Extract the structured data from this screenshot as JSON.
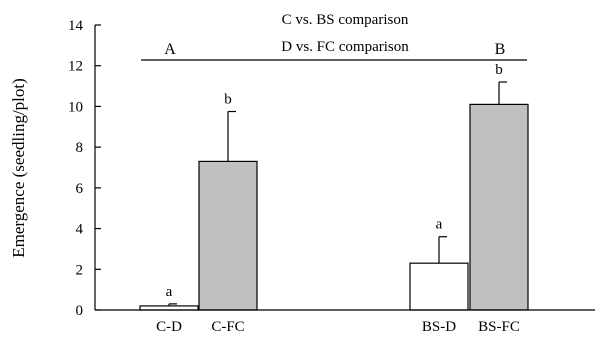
{
  "chart_data": {
    "type": "bar",
    "categories": [
      "C-D",
      "C-FC",
      "BS-D",
      "BS-FC"
    ],
    "values": [
      0.2,
      7.3,
      2.3,
      10.1
    ],
    "errors": [
      0.1,
      2.45,
      1.3,
      1.1
    ],
    "bar_colors": [
      "#ffffff",
      "#c0c0c0",
      "#ffffff",
      "#c0c0c0"
    ],
    "significance_letters": [
      "a",
      "b",
      "a",
      "b"
    ],
    "ylabel": "Emergence (seedling/plot)",
    "xlabel": "",
    "ylim": [
      0,
      14
    ],
    "yticks": [
      0,
      2,
      4,
      6,
      8,
      10,
      12,
      14
    ],
    "grid": false,
    "annotations": {
      "line1": "C vs. BS comparison",
      "line2": "D vs. FC comparison",
      "group_left": "A",
      "group_right": "B"
    }
  }
}
